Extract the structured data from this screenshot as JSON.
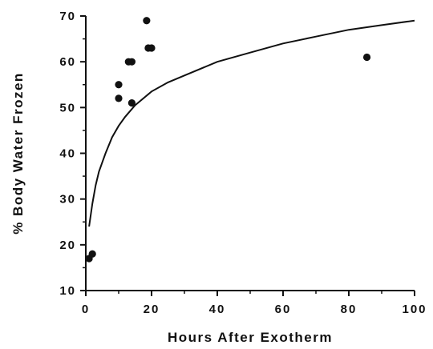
{
  "chart_data": {
    "type": "scatter",
    "title": "",
    "xlabel": "Hours After Exotherm",
    "ylabel": "% Body Water Frozen",
    "xlim": [
      0,
      100
    ],
    "ylim": [
      10,
      70
    ],
    "x_ticks": [
      0,
      20,
      40,
      60,
      80,
      100
    ],
    "y_ticks": [
      10,
      20,
      30,
      40,
      50,
      60,
      70
    ],
    "x_tick_labels": [
      "0",
      "20",
      "40",
      "60",
      "80",
      "100"
    ],
    "y_tick_labels": [
      "10",
      "20",
      "30",
      "40",
      "50",
      "60",
      "70"
    ],
    "grid": false,
    "legend": "none",
    "series": [
      {
        "type": "scatter",
        "x": [
          1,
          2,
          10,
          10,
          13,
          14,
          14,
          18.5,
          19,
          20,
          85.5
        ],
        "y": [
          17,
          18,
          55,
          52,
          60,
          60,
          51,
          69,
          63,
          63,
          61
        ]
      },
      {
        "type": "line",
        "x": [
          1,
          2,
          3,
          4,
          5,
          6,
          8,
          10,
          12,
          15,
          20,
          25,
          30,
          40,
          50,
          60,
          70,
          80,
          90,
          100
        ],
        "y": [
          24,
          29,
          33,
          36,
          38,
          40,
          43.5,
          46,
          48,
          50.5,
          53.5,
          55.5,
          57,
          60,
          62,
          64,
          65.5,
          67,
          68,
          69
        ]
      }
    ],
    "colors": {
      "points": "#111111",
      "line": "#111111",
      "axis": "#111111"
    }
  }
}
